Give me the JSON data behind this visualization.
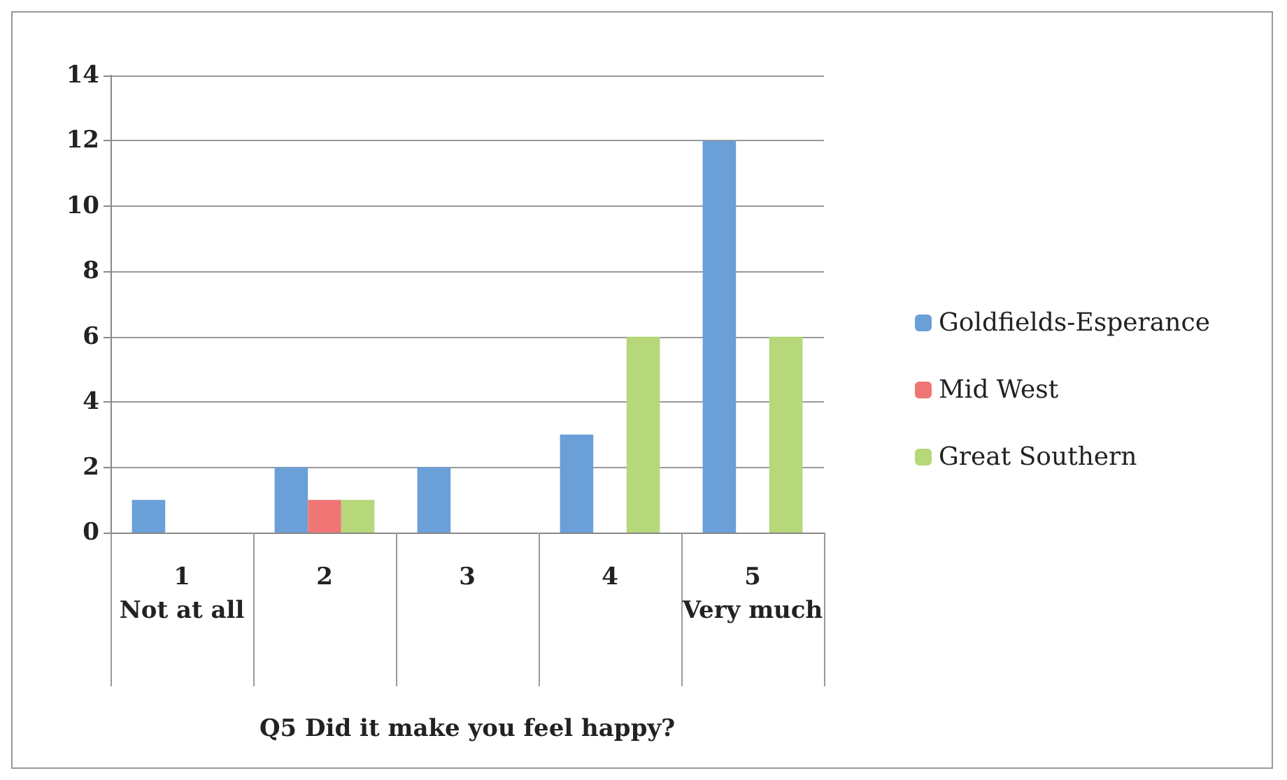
{
  "chart_data": {
    "type": "bar",
    "categories": [
      "1\nNot at all",
      "2",
      "3",
      "4",
      "5\nVery much"
    ],
    "xlabel": "Q5 Did it make you feel happy?",
    "series": [
      {
        "name": "Goldfields-Esperance",
        "color": "#6a9fd8",
        "values": [
          1,
          2,
          2,
          3,
          12
        ]
      },
      {
        "name": "Mid West",
        "color": "#f07575",
        "values": [
          0,
          1,
          0,
          0,
          0
        ]
      },
      {
        "name": "Great Southern",
        "color": "#b6d77a",
        "values": [
          0,
          1,
          0,
          6,
          6
        ]
      }
    ],
    "ylim": [
      0,
      14
    ],
    "yticks": [
      0,
      2,
      4,
      6,
      8,
      10,
      12,
      14
    ],
    "grid": "y",
    "legend": "right"
  }
}
